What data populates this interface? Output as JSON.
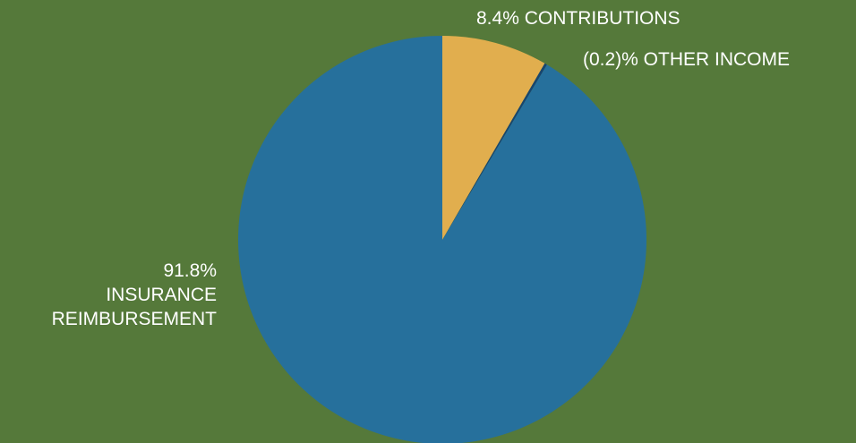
{
  "chart_data": {
    "type": "pie",
    "title": "",
    "slices": [
      {
        "name": "CONTRIBUTIONS",
        "value": 8.4,
        "color": "#e1ae4e"
      },
      {
        "name": "OTHER INCOME",
        "value": 0.2,
        "color": "#17456e"
      },
      {
        "name": "INSURANCE REIMBURSEMENT",
        "value": 91.8,
        "color": "#26709c"
      }
    ],
    "labels": {
      "contributions": "8.4% CONTRIBUTIONS",
      "other_income": "(0.2)% OTHER INCOME",
      "insurance_pct": "91.8%",
      "insurance_line1": "INSURANCE",
      "insurance_line2": "REIMBURSEMENT"
    },
    "legend": "none",
    "background": "#55793a"
  }
}
